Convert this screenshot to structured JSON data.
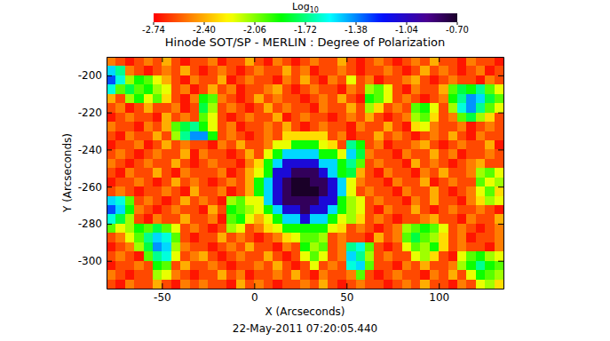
{
  "chart_data": {
    "type": "heatmap",
    "title": "Hinode SOT/SP - MERLIN : Degree of Polarization",
    "xlabel": "X (Arcseconds)",
    "ylabel": "Y (Arcseconds)",
    "annotations": [
      "22-May-2011 07:20:05.440"
    ],
    "xlim": [
      -80,
      135
    ],
    "ylim": [
      -315,
      -190
    ],
    "xticks": [
      -50,
      0,
      50,
      100
    ],
    "yticks": [
      -300,
      -280,
      -260,
      -240,
      -220,
      -200
    ],
    "colorbar": {
      "title": "Log",
      "title_subscript": "10",
      "range": [
        -2.74,
        -0.7
      ],
      "ticks": [
        -2.74,
        {
          "value": -2.4,
          "label": "-2.40"
        },
        -2.06,
        -1.72,
        -1.38,
        -1.04,
        {
          "value": -0.7,
          "label": "-0.70"
        }
      ]
    },
    "x_edges": [
      -80,
      -75,
      -70,
      -65,
      -60,
      -55,
      -50,
      -45,
      -40,
      -35,
      -30,
      -25,
      -20,
      -15,
      -10,
      -5,
      0,
      5,
      10,
      15,
      20,
      25,
      30,
      35,
      40,
      45,
      50,
      55,
      60,
      65,
      70,
      75,
      80,
      85,
      90,
      95,
      100,
      105,
      110,
      115,
      120,
      125,
      130,
      135
    ],
    "y_edges": [
      -190,
      -195,
      -200,
      -205,
      -210,
      -215,
      -220,
      -225,
      -230,
      -235,
      -240,
      -245,
      -250,
      -255,
      -260,
      -265,
      -270,
      -275,
      -280,
      -285,
      -290,
      -295,
      -300,
      -305,
      -310,
      -315
    ],
    "z": [
      [
        -2.5,
        -2.6,
        -2.7,
        -2.6,
        -2.5,
        -2.6,
        -2.4,
        -2.6,
        -2.7,
        -2.6,
        -2.6,
        -2.5,
        -2.7,
        -2.6,
        -2.6,
        -2.4,
        -2.6,
        -2.7,
        -2.5,
        -2.6,
        -2.7,
        -2.6,
        -2.5,
        -2.6,
        -2.6,
        -2.4,
        -2.6,
        -2.7,
        -2.6,
        -2.5,
        -2.6,
        -2.7,
        -2.6,
        -2.5,
        -2.6,
        -2.4,
        -2.6,
        -2.6,
        -2.7,
        -2.5,
        -2.6,
        -2.6,
        -2.7
      ],
      [
        -1.5,
        -1.7,
        -2.5,
        -2.6,
        -2.7,
        -2.6,
        -2.5,
        -2.6,
        -2.4,
        -2.6,
        -2.7,
        -2.6,
        -2.5,
        -2.6,
        -2.7,
        -2.6,
        -2.5,
        -2.6,
        -2.6,
        -2.4,
        -2.6,
        -2.5,
        -2.7,
        -2.6,
        -2.6,
        -2.5,
        -2.6,
        -2.7,
        -2.6,
        -2.6,
        -2.5,
        -2.6,
        -2.7,
        -2.6,
        -2.4,
        -2.6,
        -2.5,
        -2.6,
        -2.7,
        -2.6,
        -2.5,
        -2.7,
        -2.6
      ],
      [
        -1.3,
        -1.6,
        -2.1,
        -1.9,
        -2.0,
        -2.2,
        -2.4,
        -2.6,
        -2.7,
        -2.5,
        -2.6,
        -2.6,
        -2.4,
        -2.7,
        -2.6,
        -2.5,
        -2.6,
        -2.6,
        -2.7,
        -2.5,
        -2.6,
        -2.4,
        -2.6,
        -2.7,
        -2.5,
        -2.6,
        -2.2,
        -2.6,
        -2.5,
        -2.7,
        -2.6,
        -2.6,
        -2.5,
        -2.4,
        -2.6,
        -2.7,
        -2.6,
        -2.5,
        -2.6,
        -2.6,
        -2.7,
        -2.5,
        -2.6
      ],
      [
        -1.6,
        -2.0,
        -1.8,
        -2.0,
        -1.9,
        -2.1,
        -2.2,
        -2.6,
        -2.5,
        -2.7,
        -2.6,
        -2.4,
        -2.6,
        -2.5,
        -2.7,
        -2.6,
        -2.6,
        -2.5,
        -2.4,
        -2.6,
        -2.7,
        -2.6,
        -2.5,
        -2.6,
        -2.6,
        -2.7,
        -2.5,
        -2.6,
        -2.1,
        -2.0,
        -2.2,
        -2.6,
        -2.7,
        -2.5,
        -2.6,
        -2.6,
        -2.4,
        -2.0,
        -1.8,
        -1.9,
        -1.7,
        -2.0,
        -2.2
      ],
      [
        -2.4,
        -2.6,
        -2.1,
        -1.9,
        -2.2,
        -2.0,
        -2.3,
        -2.6,
        -2.7,
        -2.5,
        -1.9,
        -2.0,
        -2.5,
        -2.6,
        -2.7,
        -2.6,
        -2.4,
        -2.6,
        -2.5,
        -2.6,
        -2.6,
        -2.7,
        -2.6,
        -2.5,
        -2.6,
        -2.4,
        -2.6,
        -2.7,
        -1.9,
        -2.0,
        -2.2,
        -2.6,
        -2.5,
        -2.6,
        -2.7,
        -2.6,
        -2.5,
        -1.9,
        -1.7,
        -1.4,
        -1.5,
        -1.8,
        -2.0
      ],
      [
        -2.6,
        -2.5,
        -2.7,
        -2.6,
        -2.4,
        -2.6,
        -2.6,
        -2.5,
        -2.7,
        -2.6,
        -1.8,
        -2.1,
        -2.6,
        -2.5,
        -2.6,
        -2.7,
        -2.6,
        -2.4,
        -2.6,
        -2.5,
        -2.6,
        -2.6,
        -2.7,
        -2.5,
        -2.6,
        -2.6,
        -2.4,
        -2.6,
        -2.1,
        -2.3,
        -2.6,
        -2.5,
        -2.6,
        -2.0,
        -1.9,
        -2.2,
        -2.6,
        -2.1,
        -1.6,
        -1.4,
        -1.7,
        -2.0,
        -2.2
      ],
      [
        -2.7,
        -2.6,
        -2.5,
        -2.6,
        -2.6,
        -2.7,
        -2.4,
        -2.6,
        -2.5,
        -2.6,
        -2.0,
        -2.2,
        -2.6,
        -2.7,
        -2.6,
        -2.5,
        -2.6,
        -2.6,
        -2.4,
        -2.7,
        -2.6,
        -2.5,
        -2.6,
        -2.6,
        -2.7,
        -2.6,
        -2.5,
        -2.6,
        -2.4,
        -2.6,
        -2.7,
        -2.6,
        -2.5,
        -2.1,
        -2.0,
        -2.3,
        -2.6,
        -2.5,
        -2.0,
        -1.8,
        -2.1,
        -2.3,
        -2.6
      ],
      [
        -2.5,
        -2.6,
        -2.6,
        -2.7,
        -2.5,
        -2.6,
        -2.4,
        -2.0,
        -1.8,
        -1.7,
        -1.9,
        -2.2,
        -2.6,
        -2.5,
        -2.7,
        -2.6,
        -2.6,
        -2.5,
        -2.6,
        -2.4,
        -2.6,
        -2.7,
        -2.6,
        -2.5,
        -2.6,
        -2.6,
        -2.7,
        -2.5,
        -2.6,
        -2.6,
        -2.4,
        -2.6,
        -2.7,
        -2.3,
        -2.2,
        -2.5,
        -2.6,
        -2.6,
        -2.5,
        -2.7,
        -2.6,
        -2.5,
        -2.6
      ],
      [
        -2.6,
        -2.7,
        -2.5,
        -2.6,
        -2.6,
        -2.4,
        -2.6,
        -2.1,
        -1.7,
        -1.4,
        -1.4,
        -1.9,
        -2.6,
        -2.5,
        -2.6,
        -2.7,
        -2.6,
        -2.5,
        -2.6,
        -2.3,
        -2.3,
        -2.3,
        -2.3,
        -2.3,
        -2.6,
        -2.5,
        -2.7,
        -2.6,
        -2.6,
        -2.4,
        -2.6,
        -2.5,
        -2.6,
        -2.7,
        -2.6,
        -2.5,
        -2.6,
        -2.4,
        -2.6,
        -2.7,
        -2.5,
        -2.6,
        -2.6
      ],
      [
        -2.7,
        -2.6,
        -2.6,
        -2.5,
        -2.7,
        -2.6,
        -2.4,
        -2.6,
        -2.5,
        -2.6,
        -2.6,
        -2.7,
        -2.5,
        -2.6,
        -2.4,
        -2.6,
        -2.6,
        -2.5,
        -2.2,
        -2.2,
        -1.9,
        -1.9,
        -1.9,
        -2.2,
        -2.3,
        -2.6,
        -1.7,
        -1.9,
        -2.6,
        -2.5,
        -2.7,
        -2.6,
        -2.6,
        -2.5,
        -2.4,
        -2.6,
        -2.7,
        -2.6,
        -2.5,
        -2.6,
        -2.6,
        -2.4,
        -2.7
      ],
      [
        -2.6,
        -2.5,
        -2.6,
        -2.7,
        -2.6,
        -2.5,
        -2.6,
        -2.6,
        -2.4,
        -2.7,
        -2.5,
        -2.6,
        -2.6,
        -2.7,
        -2.6,
        -2.4,
        -2.6,
        -2.2,
        -1.9,
        -1.5,
        -1.5,
        -1.5,
        -1.5,
        -1.9,
        -1.9,
        -2.2,
        -1.5,
        -1.8,
        -2.5,
        -2.6,
        -2.6,
        -2.7,
        -2.5,
        -2.6,
        -2.6,
        -2.4,
        -2.6,
        -2.5,
        -2.7,
        -2.6,
        -2.6,
        -2.5,
        -2.6
      ],
      [
        -2.5,
        -2.6,
        -2.7,
        -2.6,
        -2.5,
        -2.6,
        -2.6,
        -2.4,
        -2.6,
        -2.7,
        -2.6,
        -2.5,
        -2.6,
        -2.6,
        -2.7,
        -2.5,
        -2.3,
        -1.9,
        -1.5,
        -1.1,
        -1.1,
        -1.1,
        -1.1,
        -1.5,
        -1.5,
        -1.9,
        -1.7,
        -2.0,
        -2.6,
        -2.5,
        -2.6,
        -2.6,
        -2.7,
        -2.4,
        -2.6,
        -2.5,
        -2.6,
        -2.7,
        -2.6,
        -2.5,
        -2.4,
        -2.6,
        -2.6
      ],
      [
        -2.6,
        -2.7,
        -2.5,
        -2.6,
        -2.6,
        -2.4,
        -2.6,
        -2.7,
        -2.5,
        -2.6,
        -2.6,
        -2.6,
        -2.5,
        -2.7,
        -2.6,
        -2.4,
        -2.2,
        -1.9,
        -1.1,
        -1.1,
        -0.8,
        -0.8,
        -0.8,
        -1.1,
        -1.5,
        -1.9,
        -1.8,
        -2.4,
        -2.6,
        -2.7,
        -2.5,
        -2.6,
        -2.6,
        -2.7,
        -2.5,
        -2.6,
        -2.4,
        -2.6,
        -2.6,
        -2.5,
        -2.1,
        -2.0,
        -2.2
      ],
      [
        -2.7,
        -2.6,
        -2.6,
        -2.5,
        -2.6,
        -2.7,
        -2.6,
        -2.4,
        -2.6,
        -2.5,
        -2.6,
        -2.7,
        -2.6,
        -2.5,
        -2.6,
        -2.4,
        -1.9,
        -1.5,
        -1.1,
        -0.8,
        -0.7,
        -0.7,
        -0.8,
        -0.8,
        -1.1,
        -1.5,
        -2.2,
        -2.5,
        -2.6,
        -2.6,
        -2.7,
        -2.5,
        -2.6,
        -2.6,
        -2.4,
        -2.7,
        -2.6,
        -2.5,
        -2.6,
        -2.6,
        -2.0,
        -2.2,
        -2.1
      ],
      [
        -2.6,
        -2.5,
        -2.6,
        -2.7,
        -2.6,
        -2.6,
        -2.5,
        -2.6,
        -2.7,
        -2.4,
        -2.6,
        -2.6,
        -2.5,
        -2.7,
        -2.6,
        -2.4,
        -1.9,
        -1.5,
        -1.1,
        -0.8,
        -0.7,
        -0.7,
        -0.7,
        -0.8,
        -1.1,
        -1.5,
        -2.2,
        -2.6,
        -2.5,
        -2.6,
        -2.6,
        -2.7,
        -2.5,
        -2.6,
        -2.6,
        -2.4,
        -2.6,
        -2.7,
        -2.6,
        -2.5,
        -2.2,
        -2.0,
        -2.3
      ],
      [
        -1.5,
        -1.6,
        -2.0,
        -2.6,
        -2.5,
        -2.6,
        -2.7,
        -2.6,
        -2.4,
        -2.6,
        -2.5,
        -2.6,
        -2.7,
        -2.1,
        -2.0,
        -2.2,
        -2.2,
        -1.5,
        -1.1,
        -0.8,
        -0.8,
        -0.8,
        -0.8,
        -1.1,
        -1.1,
        -1.9,
        -2.1,
        -2.2,
        -2.6,
        -2.5,
        -2.6,
        -2.6,
        -2.7,
        -2.5,
        -2.6,
        -2.4,
        -2.6,
        -2.6,
        -2.7,
        -2.5,
        -2.3,
        -2.1,
        -2.2
      ],
      [
        -1.3,
        -1.5,
        -1.9,
        -2.5,
        -2.6,
        -2.7,
        -2.6,
        -2.5,
        -2.6,
        -2.6,
        -2.7,
        -2.4,
        -2.6,
        -1.9,
        -2.0,
        -2.1,
        -2.2,
        -1.9,
        -1.5,
        -1.1,
        -1.1,
        -0.8,
        -1.1,
        -1.1,
        -1.5,
        -1.9,
        -2.1,
        -2.2,
        -2.6,
        -2.7,
        -2.5,
        -2.6,
        -2.6,
        -2.4,
        -2.6,
        -2.7,
        -2.6,
        -2.5,
        -2.6,
        -2.6,
        -2.5,
        -2.6,
        -2.7
      ],
      [
        -1.6,
        -1.8,
        -2.1,
        -2.6,
        -2.7,
        -2.5,
        -2.6,
        -2.6,
        -2.4,
        -2.6,
        -2.6,
        -2.5,
        -2.7,
        -2.0,
        -1.9,
        -2.2,
        -2.4,
        -2.2,
        -1.9,
        -1.5,
        -1.5,
        -1.1,
        -1.5,
        -1.5,
        -1.9,
        -2.2,
        -2.1,
        -2.3,
        -2.6,
        -2.5,
        -2.6,
        -2.7,
        -2.6,
        -2.6,
        -2.5,
        -2.4,
        -2.6,
        -2.6,
        -2.7,
        -2.5,
        -2.6,
        -2.6,
        -2.4
      ],
      [
        -2.0,
        -2.2,
        -2.1,
        -1.9,
        -2.0,
        -1.8,
        -2.0,
        -2.2,
        -2.6,
        -2.5,
        -2.6,
        -2.7,
        -2.6,
        -2.1,
        -2.2,
        -2.6,
        -2.5,
        -2.3,
        -2.2,
        -1.9,
        -1.9,
        -1.9,
        -1.9,
        -1.9,
        -2.2,
        -2.3,
        -2.6,
        -2.5,
        -2.6,
        -2.7,
        -2.6,
        -2.5,
        -2.1,
        -2.0,
        -1.9,
        -2.0,
        -2.2,
        -2.6,
        -2.5,
        -2.6,
        -2.7,
        -2.6,
        -2.5
      ],
      [
        -2.6,
        -2.5,
        -2.2,
        -2.0,
        -1.7,
        -1.5,
        -1.6,
        -2.0,
        -2.6,
        -2.7,
        -2.6,
        -2.6,
        -2.4,
        -2.6,
        -2.5,
        -2.6,
        -2.7,
        -2.6,
        -2.5,
        -2.3,
        -2.2,
        -2.0,
        -2.0,
        -2.1,
        -2.6,
        -2.5,
        -2.6,
        -2.6,
        -2.7,
        -2.4,
        -2.6,
        -2.5,
        -2.0,
        -1.8,
        -2.0,
        -2.1,
        -2.3,
        -2.6,
        -2.5,
        -2.7,
        -2.6,
        -2.6,
        -2.5
      ],
      [
        -2.7,
        -2.6,
        -2.5,
        -2.1,
        -1.8,
        -1.4,
        -1.5,
        -2.1,
        -2.5,
        -2.6,
        -2.6,
        -2.7,
        -2.6,
        -2.5,
        -2.6,
        -2.4,
        -2.6,
        -2.6,
        -2.7,
        -2.5,
        -2.6,
        -1.9,
        -2.1,
        -2.0,
        -2.6,
        -2.5,
        -1.7,
        -1.6,
        -2.0,
        -2.6,
        -2.7,
        -2.6,
        -2.2,
        -2.0,
        -2.1,
        -1.9,
        -2.3,
        -2.6,
        -2.5,
        -2.6,
        -2.6,
        -2.7,
        -2.5
      ],
      [
        -2.6,
        -2.5,
        -2.6,
        -2.7,
        -2.0,
        -1.7,
        -1.6,
        -2.2,
        -2.6,
        -2.5,
        -2.4,
        -2.6,
        -2.7,
        -2.6,
        -2.5,
        -2.6,
        -2.6,
        -2.4,
        -2.6,
        -2.7,
        -2.6,
        -2.2,
        -2.0,
        -2.2,
        -2.6,
        -2.5,
        -1.5,
        -1.7,
        -2.1,
        -2.6,
        -2.5,
        -2.6,
        -2.6,
        -2.2,
        -2.1,
        -2.3,
        -2.6,
        -2.7,
        -2.2,
        -2.0,
        -1.9,
        -2.1,
        -2.2
      ],
      [
        -2.7,
        -2.6,
        -2.6,
        -2.5,
        -2.6,
        -1.9,
        -2.0,
        -2.6,
        -2.4,
        -2.6,
        -2.6,
        -2.5,
        -2.6,
        -2.7,
        -2.6,
        -2.6,
        -2.5,
        -2.6,
        -2.4,
        -2.6,
        -2.7,
        -2.6,
        -2.2,
        -2.6,
        -2.5,
        -2.6,
        -1.6,
        -1.5,
        -2.0,
        -2.6,
        -2.6,
        -2.7,
        -2.5,
        -2.6,
        -2.4,
        -2.6,
        -2.6,
        -2.5,
        -2.1,
        -1.9,
        -1.7,
        -1.9,
        -2.0
      ],
      [
        -2.5,
        -2.6,
        -2.7,
        -2.6,
        -2.6,
        -2.1,
        -2.2,
        -2.5,
        -2.6,
        -2.7,
        -2.6,
        -2.6,
        -2.4,
        -2.6,
        -2.5,
        -2.7,
        -2.6,
        -2.6,
        -2.5,
        -2.6,
        -2.4,
        -2.6,
        -2.7,
        -2.5,
        -2.6,
        -2.6,
        -2.5,
        -2.0,
        -2.6,
        -2.7,
        -2.6,
        -2.5,
        -2.6,
        -2.6,
        -2.7,
        -2.5,
        -2.6,
        -2.4,
        -2.6,
        -2.2,
        -1.9,
        -2.0,
        -2.1
      ],
      [
        -2.6,
        -2.7,
        -2.5,
        -2.6,
        -2.6,
        -2.4,
        -2.6,
        -2.7,
        -2.5,
        -2.6,
        -2.5,
        -2.6,
        -2.6,
        -2.7,
        -2.4,
        -2.6,
        -2.5,
        -2.6,
        -2.7,
        -2.6,
        -2.6,
        -2.5,
        -2.6,
        -2.4,
        -2.6,
        -2.7,
        -2.6,
        -2.5,
        -2.6,
        -2.6,
        -2.7,
        -2.6,
        -2.5,
        -2.6,
        -2.4,
        -2.6,
        -2.6,
        -2.7,
        -2.5,
        -2.6,
        -2.2,
        -2.1,
        -2.3
      ]
    ]
  }
}
